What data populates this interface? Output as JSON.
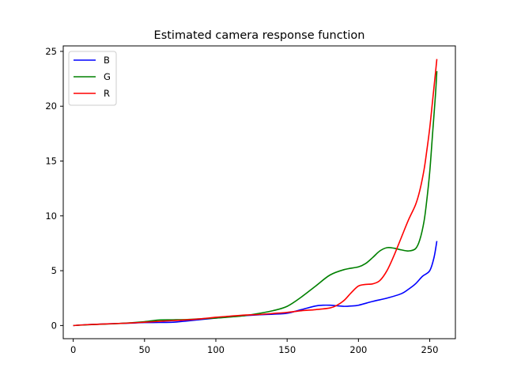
{
  "chart_data": {
    "type": "line",
    "title": "Estimated camera response function",
    "xlabel": "",
    "ylabel": "",
    "xlim": [
      -7,
      268
    ],
    "ylim": [
      -1.2,
      25.5
    ],
    "xticks": [
      0,
      50,
      100,
      150,
      200,
      250
    ],
    "yticks": [
      0,
      5,
      10,
      15,
      20,
      25
    ],
    "xtick_labels": [
      "0",
      "50",
      "100",
      "150",
      "200",
      "250"
    ],
    "ytick_labels": [
      "0",
      "5",
      "10",
      "15",
      "20",
      "25"
    ],
    "grid": false,
    "legend_position": "top-left",
    "series": [
      {
        "name": "B",
        "color": "#0000ff",
        "x": [
          0,
          10,
          20,
          30,
          40,
          50,
          60,
          70,
          80,
          90,
          100,
          110,
          120,
          130,
          140,
          150,
          160,
          170,
          175,
          180,
          185,
          190,
          195,
          200,
          210,
          220,
          230,
          235,
          240,
          245,
          250,
          253,
          255
        ],
        "y": [
          0.0,
          0.08,
          0.13,
          0.18,
          0.22,
          0.27,
          0.28,
          0.3,
          0.42,
          0.55,
          0.68,
          0.8,
          0.9,
          0.98,
          1.03,
          1.12,
          1.45,
          1.78,
          1.85,
          1.85,
          1.8,
          1.75,
          1.78,
          1.85,
          2.2,
          2.5,
          2.9,
          3.3,
          3.8,
          4.5,
          5.0,
          6.2,
          7.7
        ]
      },
      {
        "name": "G",
        "color": "#008000",
        "x": [
          0,
          10,
          20,
          30,
          40,
          50,
          60,
          70,
          80,
          90,
          100,
          110,
          120,
          130,
          140,
          150,
          160,
          170,
          180,
          190,
          200,
          205,
          210,
          215,
          220,
          225,
          230,
          235,
          240,
          243,
          246,
          248,
          250,
          252,
          254,
          255
        ],
        "y": [
          0.0,
          0.07,
          0.12,
          0.17,
          0.25,
          0.35,
          0.5,
          0.52,
          0.55,
          0.62,
          0.68,
          0.78,
          0.9,
          1.1,
          1.35,
          1.75,
          2.6,
          3.6,
          4.6,
          5.1,
          5.35,
          5.65,
          6.2,
          6.8,
          7.1,
          7.05,
          6.9,
          6.8,
          7.0,
          7.8,
          9.5,
          11.5,
          14.0,
          17.5,
          21.0,
          23.2
        ]
      },
      {
        "name": "R",
        "color": "#ff0000",
        "x": [
          0,
          10,
          20,
          30,
          40,
          50,
          60,
          70,
          80,
          90,
          100,
          110,
          120,
          130,
          140,
          150,
          160,
          170,
          180,
          185,
          190,
          195,
          200,
          205,
          210,
          215,
          220,
          225,
          230,
          235,
          240,
          243,
          246,
          248,
          250,
          252,
          254,
          255
        ],
        "y": [
          0.0,
          0.08,
          0.13,
          0.18,
          0.23,
          0.3,
          0.38,
          0.45,
          0.52,
          0.62,
          0.75,
          0.85,
          0.95,
          1.0,
          1.1,
          1.2,
          1.35,
          1.45,
          1.6,
          1.85,
          2.3,
          3.0,
          3.6,
          3.75,
          3.8,
          4.1,
          5.0,
          6.4,
          8.0,
          9.6,
          11.0,
          12.3,
          14.2,
          16.0,
          18.0,
          20.5,
          23.0,
          24.3
        ]
      }
    ]
  }
}
